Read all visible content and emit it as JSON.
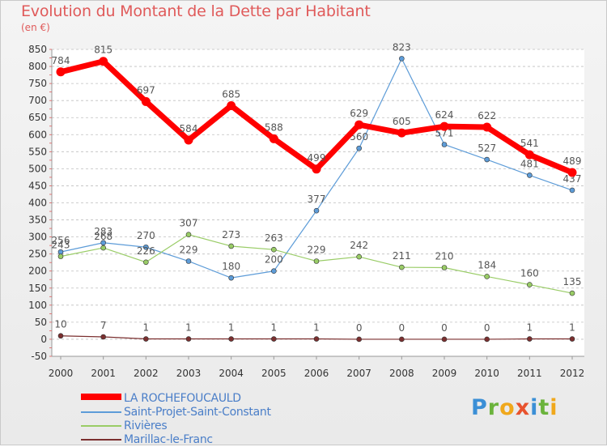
{
  "title": "Evolution du Montant de la Dette par Habitant",
  "subtitle": "(en €)",
  "logo_text": "Proxiti",
  "colors": {
    "title": "#e05a5a",
    "grid": "#bfbfbf",
    "axis_text": "#333333",
    "value_text": "#555555"
  },
  "chart_data": {
    "type": "line",
    "x": [
      "2000",
      "2001",
      "2002",
      "2003",
      "2004",
      "2005",
      "2006",
      "2007",
      "2008",
      "2009",
      "2010",
      "2011",
      "2012"
    ],
    "ylim": [
      -50,
      850
    ],
    "yticks": [
      -50,
      0,
      50,
      100,
      150,
      200,
      250,
      300,
      350,
      400,
      450,
      500,
      550,
      600,
      650,
      700,
      750,
      800,
      850
    ],
    "grid": "horizontal dashed",
    "legend_position": "bottom-left",
    "series": [
      {
        "name": "LA ROCHEFOUCAULD",
        "color": "#ff0000",
        "width": 7,
        "values": [
          784,
          815,
          697,
          584,
          685,
          588,
          499,
          629,
          605,
          624,
          622,
          541,
          489
        ]
      },
      {
        "name": "Saint-Projet-Saint-Constant",
        "color": "#5d9cd8",
        "width": 1.2,
        "values": [
          256,
          283,
          270,
          229,
          180,
          200,
          377,
          560,
          823,
          571,
          527,
          481,
          437
        ]
      },
      {
        "name": "Rivières",
        "color": "#99cc66",
        "width": 1.2,
        "values": [
          243,
          268,
          226,
          307,
          273,
          263,
          229,
          242,
          211,
          210,
          184,
          160,
          135
        ]
      },
      {
        "name": "Marillac-le-Franc",
        "color": "#7b2f2f",
        "width": 1.2,
        "values": [
          10,
          7,
          1,
          1,
          1,
          1,
          1,
          0,
          0,
          0,
          0,
          1,
          1
        ]
      }
    ]
  }
}
